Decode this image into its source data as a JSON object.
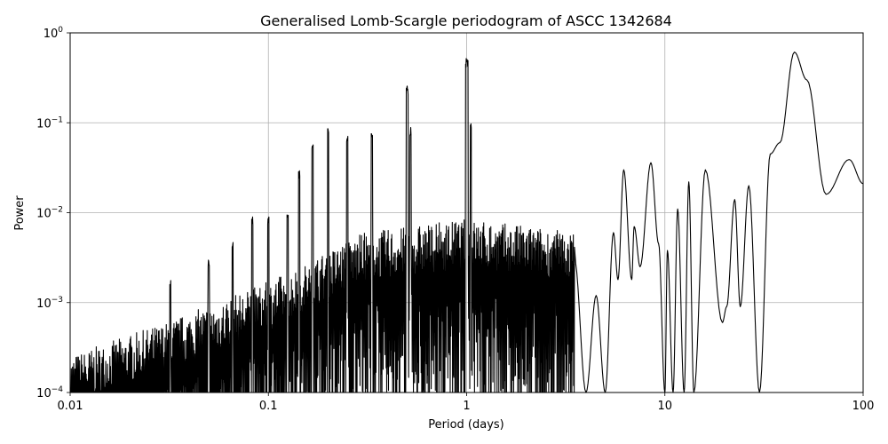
{
  "chart_data": {
    "type": "line",
    "title": "Generalised Lomb-Scargle periodogram of ASCC 1342684",
    "xlabel": "Period (days)",
    "ylabel": "Power",
    "xscale": "log",
    "yscale": "log",
    "xlim": [
      0.01,
      100
    ],
    "ylim": [
      0.0001,
      1
    ],
    "grid": true,
    "line_color": "#000000",
    "x_ticks": [
      {
        "value": 0.01,
        "label": "0.01"
      },
      {
        "value": 0.1,
        "label": "0.1"
      },
      {
        "value": 1,
        "label": "1"
      },
      {
        "value": 10,
        "label": "10"
      },
      {
        "value": 100,
        "label": "100"
      }
    ],
    "y_ticks": [
      {
        "value": 0.0001,
        "base": "10",
        "exp": "−4"
      },
      {
        "value": 0.001,
        "base": "10",
        "exp": "−3"
      },
      {
        "value": 0.01,
        "base": "10",
        "exp": "−2"
      },
      {
        "value": 0.1,
        "base": "10",
        "exp": "−1"
      },
      {
        "value": 1,
        "base": "10",
        "exp": "0"
      }
    ],
    "noise_floor": [
      [
        0.01,
        0.00012
      ],
      [
        0.03,
        0.00028
      ],
      [
        0.1,
        0.0008
      ],
      [
        0.3,
        0.0028
      ],
      [
        1,
        0.004
      ],
      [
        3,
        0.003
      ],
      [
        5,
        0.0025
      ]
    ],
    "peaks": [
      {
        "period": 0.032,
        "power": 0.0018
      },
      {
        "period": 0.05,
        "power": 0.003
      },
      {
        "period": 0.066,
        "power": 0.005
      },
      {
        "period": 0.083,
        "power": 0.009
      },
      {
        "period": 0.1,
        "power": 0.009
      },
      {
        "period": 0.125,
        "power": 0.011
      },
      {
        "period": 0.143,
        "power": 0.03
      },
      {
        "period": 0.167,
        "power": 0.062
      },
      {
        "period": 0.2,
        "power": 0.09
      },
      {
        "period": 0.25,
        "power": 0.075
      },
      {
        "period": 0.333,
        "power": 0.085
      },
      {
        "period": 0.5,
        "power": 0.27
      },
      {
        "period": 0.503,
        "power": 0.26
      },
      {
        "period": 0.52,
        "power": 0.09
      },
      {
        "period": 0.995,
        "power": 0.52
      },
      {
        "period": 1.01,
        "power": 0.51
      },
      {
        "period": 1.05,
        "power": 0.1
      }
    ],
    "long_period_curve": [
      [
        3.5,
        0.003
      ],
      [
        4.0,
        0.0001
      ],
      [
        4.5,
        0.0012
      ],
      [
        5.0,
        0.0001
      ],
      [
        5.5,
        0.006
      ],
      [
        5.8,
        0.0018
      ],
      [
        6.2,
        0.03
      ],
      [
        6.8,
        0.0018
      ],
      [
        7.0,
        0.007
      ],
      [
        7.5,
        0.0025
      ],
      [
        8.5,
        0.036
      ],
      [
        9.3,
        0.0045
      ],
      [
        10.0,
        0.0001
      ],
      [
        10.3,
        0.0038
      ],
      [
        11.0,
        0.0001
      ],
      [
        11.6,
        0.011
      ],
      [
        12.5,
        0.0001
      ],
      [
        13.2,
        0.022
      ],
      [
        14.0,
        0.0001
      ],
      [
        16.0,
        0.03
      ],
      [
        19.5,
        0.0006
      ],
      [
        20.5,
        0.0009
      ],
      [
        22.5,
        0.014
      ],
      [
        24.0,
        0.0009
      ],
      [
        26.5,
        0.02
      ],
      [
        30.0,
        0.0001
      ],
      [
        34.0,
        0.045
      ],
      [
        38.0,
        0.06
      ],
      [
        45.0,
        0.61
      ],
      [
        52.0,
        0.3
      ],
      [
        65.0,
        0.016
      ],
      [
        85.0,
        0.039
      ],
      [
        100.0,
        0.021
      ]
    ]
  }
}
